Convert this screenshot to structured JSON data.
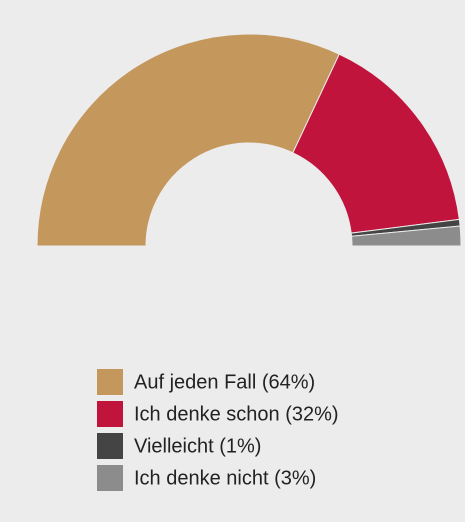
{
  "chart_data": {
    "type": "semi-donut",
    "categories": [
      "Auf jeden Fall (64%)",
      "Ich denke schon (32%)",
      "Vielleicht (1%)",
      "Ich denke nicht (3%)"
    ],
    "values": [
      64,
      32,
      1,
      3
    ],
    "colors": [
      "#c4975c",
      "#c0143c",
      "#444444",
      "#8c8c8c"
    ]
  }
}
